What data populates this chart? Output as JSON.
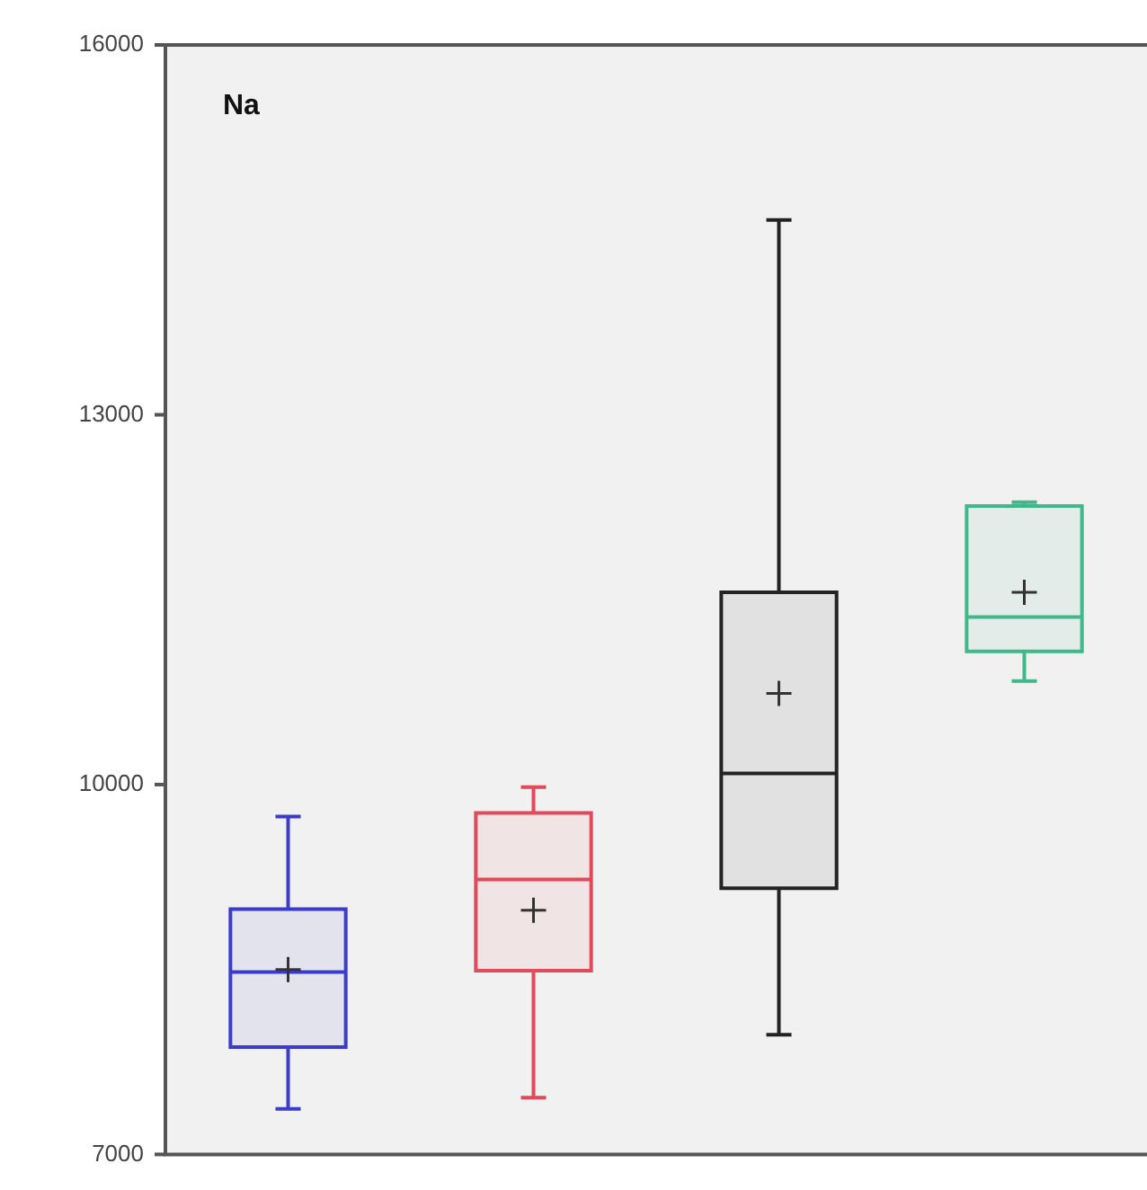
{
  "chart_data": {
    "type": "box",
    "title": "Na",
    "categories": [
      null,
      null,
      null,
      null
    ],
    "colors": [
      "#3c3ccc",
      "#e04a5a",
      "#222222",
      "#40b88a"
    ],
    "boxes": [
      {
        "low": 7370,
        "q1": 7870,
        "median": 8480,
        "q3": 8990,
        "high": 9740,
        "mean": 8500
      },
      {
        "low": 7460,
        "q1": 8490,
        "median": 9230,
        "q3": 9770,
        "high": 9980,
        "mean": 8980
      },
      {
        "low": 7970,
        "q1": 9160,
        "median": 10090,
        "q3": 11560,
        "high": 14580,
        "mean": 10740
      },
      {
        "low": 10840,
        "q1": 11080,
        "median": 11360,
        "q3": 12260,
        "high": 12290,
        "mean": 11560
      }
    ],
    "ylim": [
      7000,
      16000
    ],
    "yticks": [
      7000,
      10000,
      13000,
      16000
    ]
  }
}
